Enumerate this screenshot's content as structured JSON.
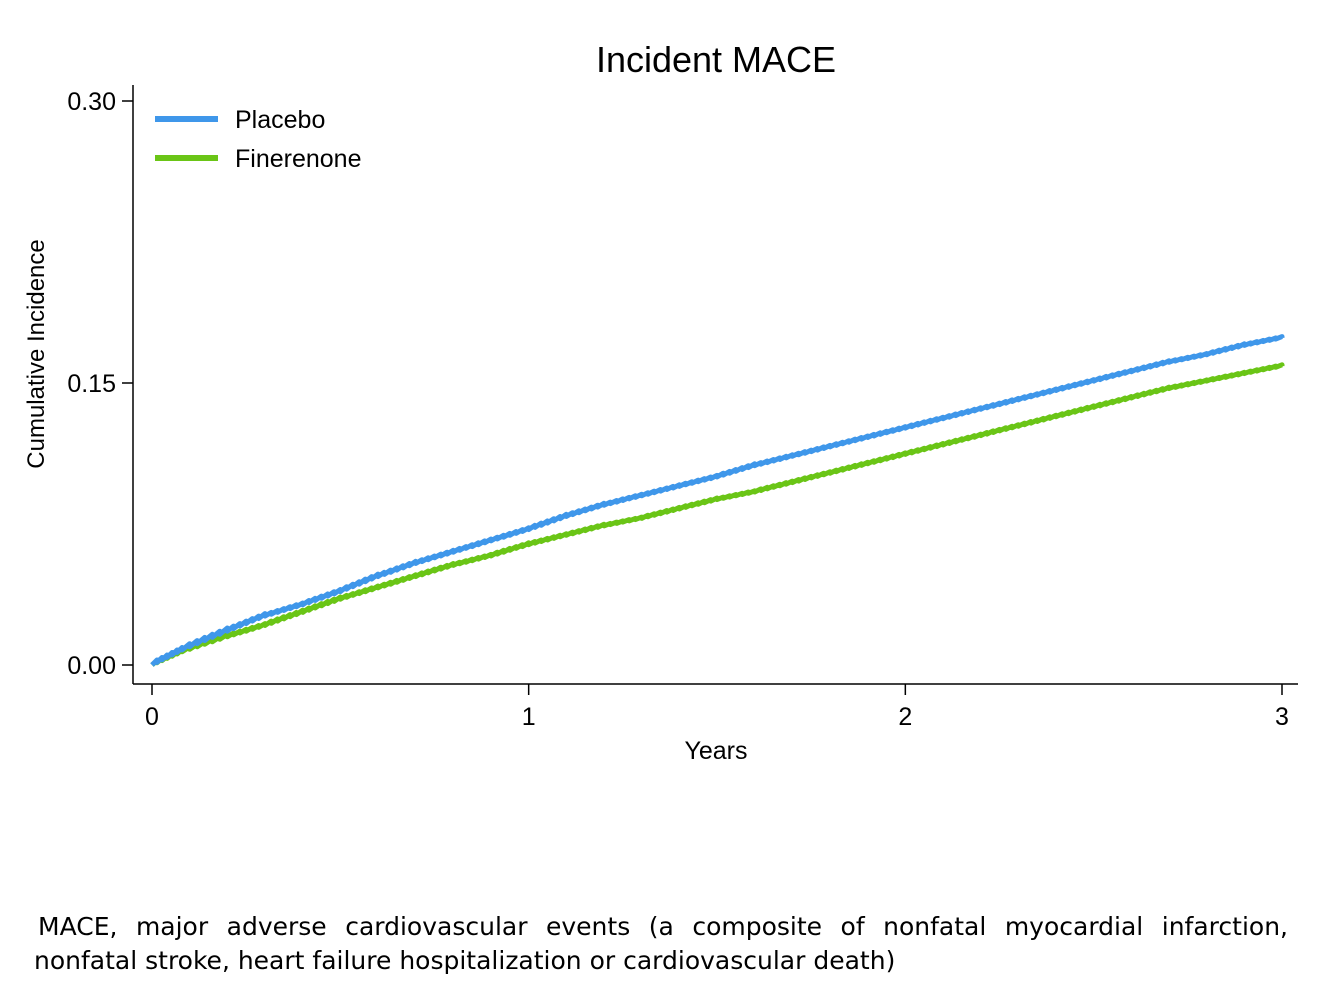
{
  "chart_data": {
    "type": "line",
    "title": "Incident MACE",
    "xlabel": "Years",
    "ylabel": "Cumulative Incidence",
    "xlim": [
      0,
      3
    ],
    "ylim": [
      0,
      0.3
    ],
    "x_ticks": [
      "0",
      "1",
      "2",
      "3"
    ],
    "y_ticks": [
      "0.00",
      "0.15",
      "0.30"
    ],
    "grid": false,
    "legend_position": "top-left",
    "series": [
      {
        "name": "Placebo",
        "color": "#3f97ea",
        "x": [
          0,
          0.08,
          0.2,
          0.3,
          0.4,
          0.5,
          0.6,
          0.7,
          0.8,
          0.9,
          1.0,
          1.1,
          1.2,
          1.3,
          1.4,
          1.5,
          1.6,
          1.7,
          1.8,
          1.9,
          2.0,
          2.1,
          2.2,
          2.3,
          2.4,
          2.5,
          2.6,
          2.7,
          2.8,
          2.9,
          3.0
        ],
        "y": [
          0,
          0.008,
          0.018,
          0.026,
          0.032,
          0.039,
          0.047,
          0.054,
          0.06,
          0.066,
          0.072,
          0.079,
          0.085,
          0.09,
          0.095,
          0.1,
          0.106,
          0.111,
          0.116,
          0.121,
          0.126,
          0.131,
          0.136,
          0.141,
          0.146,
          0.151,
          0.156,
          0.161,
          0.165,
          0.17,
          0.174
        ]
      },
      {
        "name": "Finerenone",
        "color": "#6ac516",
        "x": [
          0,
          0.08,
          0.2,
          0.3,
          0.4,
          0.5,
          0.6,
          0.7,
          0.8,
          0.9,
          1.0,
          1.1,
          1.2,
          1.3,
          1.4,
          1.5,
          1.6,
          1.7,
          1.8,
          1.9,
          2.0,
          2.1,
          2.2,
          2.3,
          2.4,
          2.5,
          2.6,
          2.7,
          2.8,
          2.9,
          3.0
        ],
        "y": [
          0,
          0.007,
          0.015,
          0.021,
          0.028,
          0.035,
          0.041,
          0.047,
          0.053,
          0.058,
          0.064,
          0.069,
          0.074,
          0.078,
          0.083,
          0.088,
          0.092,
          0.097,
          0.102,
          0.107,
          0.112,
          0.117,
          0.122,
          0.127,
          0.132,
          0.137,
          0.142,
          0.147,
          0.151,
          0.155,
          0.159
        ]
      }
    ]
  },
  "footnote": {
    "line1": "MACE, major adverse cardiovascular events (a composite of nonfatal myocardial infarction,",
    "line2": "nonfatal stroke, heart failure hospitalization or cardiovascular death)"
  }
}
